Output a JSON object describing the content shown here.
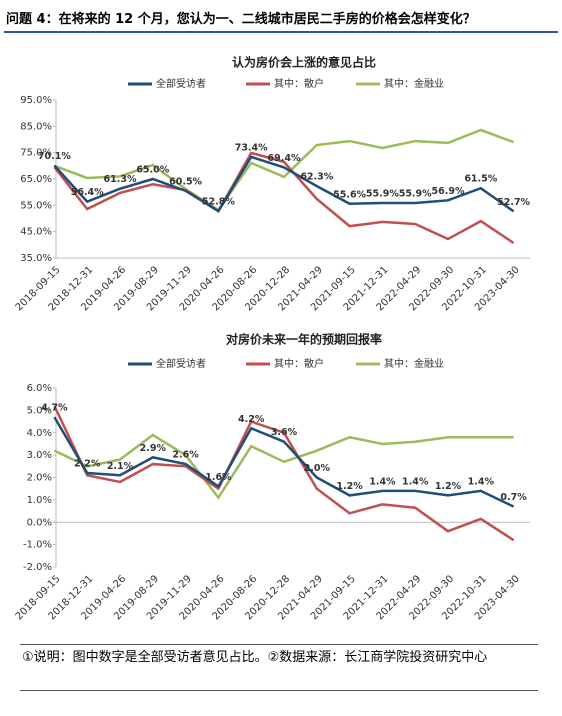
{
  "header": {
    "title": "问题 4：在将来的 12 个月，您认为一、二线城市居民二手房的价格会怎样变化？"
  },
  "footer": {
    "note": "①说明：图中数字是全部受访者意见占比。②数据来源：长江商学院投资研究中心"
  },
  "chart_data": [
    {
      "type": "line",
      "title": "认为房价会上涨的意见占比",
      "categories": [
        "2018-09-15",
        "2018-12-31",
        "2019-04-26",
        "2019-08-29",
        "2019-11-29",
        "2020-04-26",
        "2020-08-26",
        "2020-12-28",
        "2021-04-29",
        "2021-09-15",
        "2021-12-31",
        "2022-04-29",
        "2022-09-30",
        "2022-10-31",
        "2023-04-30"
      ],
      "series": [
        {
          "name": "全部受访者",
          "color": "#1f4e79",
          "values": [
            70.1,
            56.4,
            61.3,
            65.0,
            60.5,
            52.8,
            73.4,
            69.4,
            62.3,
            55.6,
            55.9,
            55.9,
            56.9,
            61.5,
            52.7
          ],
          "value_labels": [
            "70.1%",
            "56.4%",
            "61.3%",
            "65.0%",
            "60.5%",
            "52.8%",
            "73.4%",
            "69.4%",
            "62.3%",
            "55.6%",
            "55.9%",
            "55.9%",
            "56.9%",
            "61.5%",
            "52.7%"
          ]
        },
        {
          "name": "其中：散户",
          "color": "#c0504d",
          "values": [
            69.5,
            53.6,
            59.7,
            63,
            60.8,
            52.8,
            74.9,
            71.5,
            57.4,
            47.1,
            48.7,
            47.9,
            42.2,
            49,
            40.7
          ]
        },
        {
          "name": "其中：金融业",
          "color": "#9bbb59",
          "values": [
            70,
            65.4,
            66,
            70.3,
            61.2,
            53.2,
            71.1,
            65.8,
            77.9,
            79.4,
            76.8,
            79.4,
            78.7,
            83.6,
            79
          ]
        }
      ],
      "ylim": [
        35,
        95
      ],
      "yticks": [
        {
          "value": 95,
          "label": "95.0%"
        },
        {
          "value": 85,
          "label": "85.0%"
        },
        {
          "value": 75,
          "label": "75.0%"
        },
        {
          "value": 65,
          "label": "65.0%"
        },
        {
          "value": 55,
          "label": "55.0%"
        },
        {
          "value": 45,
          "label": "45.0%"
        },
        {
          "value": 35,
          "label": "35.0%"
        }
      ],
      "grid": false
    },
    {
      "type": "line",
      "title": "对房价未来一年的预期回报率",
      "categories": [
        "2018-09-15",
        "2018-12-31",
        "2019-04-26",
        "2019-08-29",
        "2019-11-29",
        "2020-04-26",
        "2020-08-26",
        "2020-12-28",
        "2021-04-29",
        "2021-09-15",
        "2021-12-31",
        "2022-04-29",
        "2022-09-30",
        "2022-10-31",
        "2023-04-30"
      ],
      "series": [
        {
          "name": "全部受访者",
          "color": "#1f4e79",
          "values": [
            4.7,
            2.2,
            2.1,
            2.9,
            2.6,
            1.6,
            4.2,
            3.6,
            2.0,
            1.2,
            1.4,
            1.4,
            1.2,
            1.4,
            0.7
          ],
          "value_labels": [
            "4.7%",
            "2.2%",
            "2.1%",
            "2.9%",
            "2.6%",
            "1.6%",
            "4.2%",
            "3.6%",
            "2.0%",
            "1.2%",
            "1.4%",
            "1.4%",
            "1.2%",
            "1.4%",
            "0.7%"
          ]
        },
        {
          "name": "其中：散户",
          "color": "#c0504d",
          "values": [
            5.2,
            2.1,
            1.8,
            2.6,
            2.5,
            1.5,
            4.5,
            4.0,
            1.5,
            0.4,
            0.8,
            0.65,
            -0.4,
            0.15,
            -0.8
          ]
        },
        {
          "name": "其中：金融业",
          "color": "#9bbb59",
          "values": [
            3.2,
            2.5,
            2.8,
            3.9,
            3.0,
            1.1,
            3.4,
            2.7,
            3.2,
            3.8,
            3.5,
            3.6,
            3.8,
            3.8,
            3.8
          ]
        }
      ],
      "ylim": [
        -2,
        6
      ],
      "yticks": [
        {
          "value": 6,
          "label": "6.0%"
        },
        {
          "value": 5,
          "label": "5.0%"
        },
        {
          "value": 4,
          "label": "4.0%"
        },
        {
          "value": 3,
          "label": "3.0%"
        },
        {
          "value": 2,
          "label": "2.0%"
        },
        {
          "value": 1,
          "label": "1.0%"
        },
        {
          "value": 0,
          "label": "0.0%"
        },
        {
          "value": -1,
          "label": "-1.0%"
        },
        {
          "value": -2,
          "label": "-2.0%"
        }
      ],
      "grid": false
    }
  ]
}
